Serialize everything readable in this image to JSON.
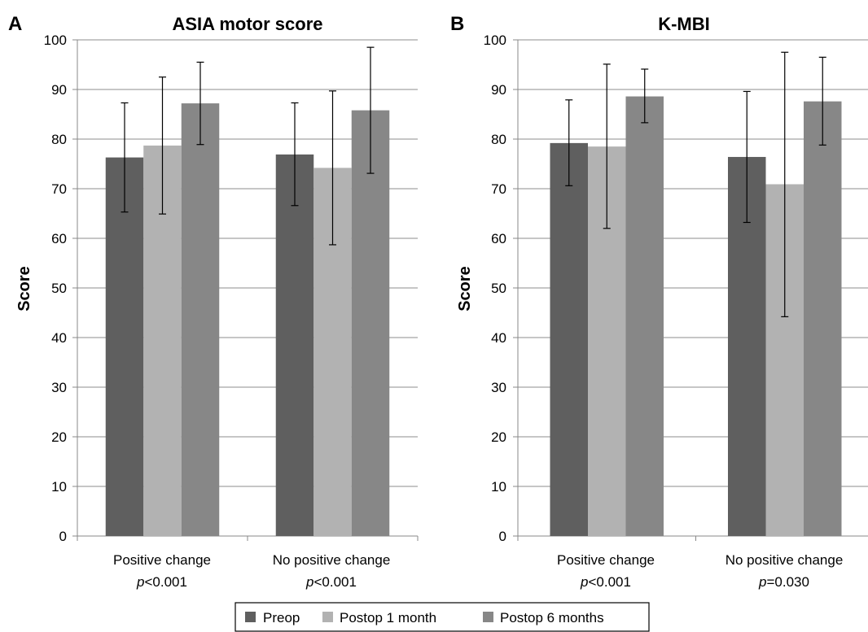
{
  "colors": {
    "preop": "#5f5f5f",
    "postop_1_month": "#b2b2b2",
    "postop_6_months": "#878787",
    "grid": "#8c8c8c",
    "axis": "#888888"
  },
  "legend": {
    "entries": [
      "Preop",
      "Postop 1 month",
      "Postop 6 months"
    ],
    "placement": "bottom-center"
  },
  "chart_data": [
    {
      "type": "bar",
      "panel_label": "A",
      "title": "ASIA motor score",
      "ylabel": "Score",
      "xlabel": "",
      "ylim": [
        0,
        100
      ],
      "yticks": [
        0,
        10,
        20,
        30,
        40,
        50,
        60,
        70,
        80,
        90,
        100
      ],
      "grid": true,
      "categories": [
        "Positive change",
        "No positive change"
      ],
      "p_values": [
        {
          "prefix": "p",
          "text": "<0.001"
        },
        {
          "prefix": "p",
          "text": "<0.001"
        }
      ],
      "series": [
        {
          "name": "Preop",
          "values": [
            76.3,
            76.9
          ],
          "error_low": [
            65.3,
            66.6
          ],
          "error_high": [
            87.3,
            87.3
          ]
        },
        {
          "name": "Postop 1 month",
          "values": [
            78.7,
            74.2
          ],
          "error_low": [
            64.9,
            58.7
          ],
          "error_high": [
            92.5,
            89.7
          ]
        },
        {
          "name": "Postop 6 months",
          "values": [
            87.2,
            85.8
          ],
          "error_low": [
            78.9,
            73.1
          ],
          "error_high": [
            95.5,
            98.5
          ]
        }
      ]
    },
    {
      "type": "bar",
      "panel_label": "B",
      "title": "K-MBI",
      "ylabel": "Score",
      "xlabel": "",
      "ylim": [
        0,
        100
      ],
      "yticks": [
        0,
        10,
        20,
        30,
        40,
        50,
        60,
        70,
        80,
        90,
        100
      ],
      "grid": true,
      "categories": [
        "Positive change",
        "No positive change"
      ],
      "p_values": [
        {
          "prefix": "p",
          "text": "<0.001"
        },
        {
          "prefix": "p",
          "text": "=0.030"
        }
      ],
      "series": [
        {
          "name": "Preop",
          "values": [
            79.2,
            76.4
          ],
          "error_low": [
            70.6,
            63.2
          ],
          "error_high": [
            87.9,
            89.6
          ]
        },
        {
          "name": "Postop 1 month",
          "values": [
            78.5,
            70.9
          ],
          "error_low": [
            62.0,
            44.2
          ],
          "error_high": [
            95.1,
            97.5
          ]
        },
        {
          "name": "Postop 6 months",
          "values": [
            88.6,
            87.6
          ],
          "error_low": [
            83.3,
            78.8
          ],
          "error_high": [
            94.1,
            96.5
          ]
        }
      ]
    }
  ]
}
